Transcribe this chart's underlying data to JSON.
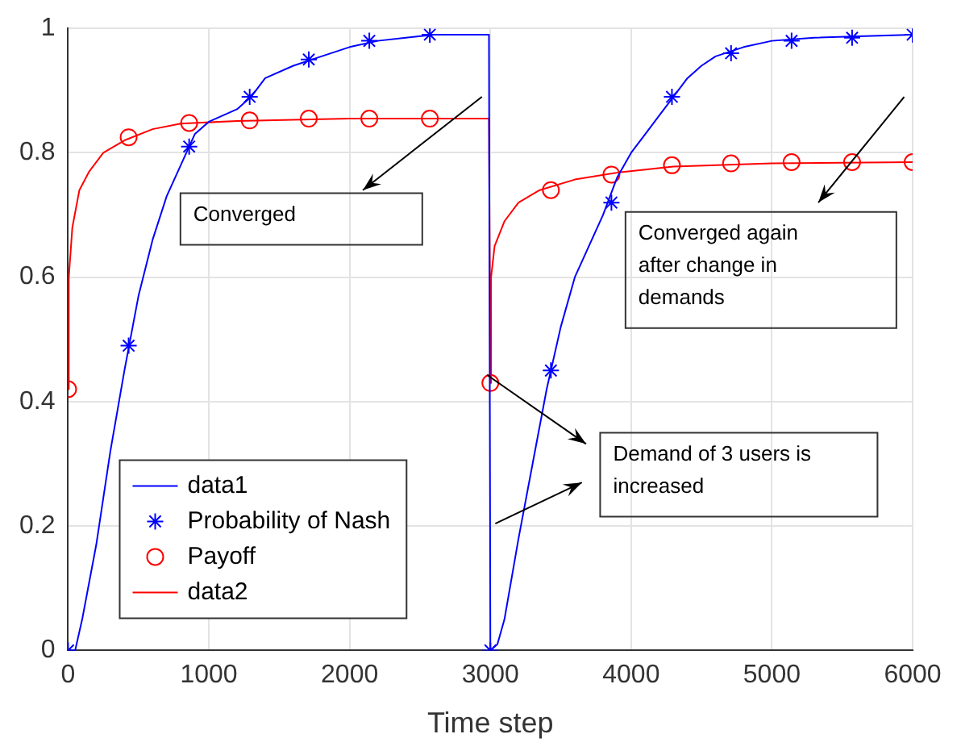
{
  "chart_data": {
    "type": "line",
    "xlabel": "Time step",
    "xlim": [
      0,
      6000
    ],
    "xticks": [
      0,
      1000,
      2000,
      3000,
      4000,
      5000,
      6000
    ],
    "ylim": [
      0,
      1
    ],
    "yticks": [
      0,
      0.2,
      0.4,
      0.6,
      0.8,
      1
    ],
    "grid": true,
    "legend": "bottom left",
    "annotations": [
      "Converged",
      "Converged again after change in demands",
      "Demand of 3 users is increased"
    ],
    "series": [
      {
        "name": "data1",
        "type": "line",
        "color": "#0000ff",
        "marker": "none",
        "x": [
          0,
          50,
          100,
          200,
          300,
          400,
          500,
          600,
          700,
          800,
          900,
          1000,
          1100,
          1200,
          1300,
          1400,
          1600,
          1800,
          2000,
          2200,
          2400,
          2600,
          2990,
          3000,
          3050,
          3100,
          3200,
          3300,
          3400,
          3500,
          3600,
          3700,
          3800,
          3900,
          4000,
          4100,
          4200,
          4300,
          4400,
          4500,
          4600,
          4800,
          5000,
          5300,
          6000
        ],
        "values": [
          0,
          0,
          0.05,
          0.17,
          0.32,
          0.45,
          0.57,
          0.66,
          0.73,
          0.78,
          0.83,
          0.85,
          0.86,
          0.87,
          0.89,
          0.92,
          0.94,
          0.955,
          0.97,
          0.98,
          0.985,
          0.99,
          0.99,
          0,
          0.01,
          0.05,
          0.18,
          0.3,
          0.42,
          0.52,
          0.6,
          0.65,
          0.7,
          0.76,
          0.8,
          0.83,
          0.86,
          0.89,
          0.92,
          0.94,
          0.955,
          0.97,
          0.98,
          0.985,
          0.99
        ]
      },
      {
        "name": "Probability of Nash",
        "type": "scatter",
        "color": "#0000ff",
        "marker": "cross",
        "x": [
          0,
          430,
          860,
          1290,
          1710,
          2140,
          2570,
          3000,
          3430,
          3860,
          4290,
          4710,
          5140,
          5570,
          6000
        ],
        "values": [
          0,
          0.49,
          0.81,
          0.89,
          0.95,
          0.98,
          0.99,
          0,
          0.45,
          0.72,
          0.89,
          0.96,
          0.98,
          0.985,
          0.99
        ]
      },
      {
        "name": "Payoff",
        "type": "scatter",
        "color": "#ff0000",
        "marker": "circle",
        "x": [
          0,
          430,
          860,
          1290,
          1710,
          2140,
          2570,
          3000,
          3430,
          3860,
          4290,
          4710,
          5140,
          5570,
          6000
        ],
        "values": [
          0.42,
          0.825,
          0.848,
          0.852,
          0.855,
          0.855,
          0.855,
          0.43,
          0.74,
          0.765,
          0.78,
          0.783,
          0.785,
          0.785,
          0.785
        ]
      },
      {
        "name": "data2",
        "type": "line",
        "color": "#ff0000",
        "marker": "none",
        "x": [
          0,
          5,
          30,
          80,
          150,
          250,
          400,
          600,
          800,
          1200,
          2000,
          2990,
          3000,
          3005,
          3030,
          3100,
          3200,
          3350,
          3600,
          3900,
          4300,
          5000,
          6000
        ],
        "values": [
          0.42,
          0.6,
          0.68,
          0.74,
          0.77,
          0.8,
          0.82,
          0.838,
          0.847,
          0.851,
          0.855,
          0.855,
          0.43,
          0.6,
          0.65,
          0.69,
          0.72,
          0.74,
          0.757,
          0.768,
          0.778,
          0.783,
          0.785
        ]
      }
    ]
  }
}
